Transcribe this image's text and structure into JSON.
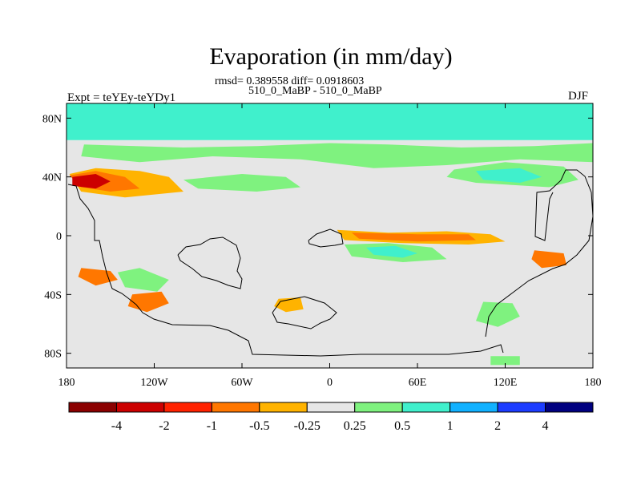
{
  "chart_data": {
    "type": "heatmap",
    "title": "Evaporation (in mm/day)",
    "stats_line": "rmsd= 0.389558 diff= 0.0918603",
    "subtitle": "510_0_MaBP - 510_0_MaBP",
    "left_label": "Expt = teYEy-teYDy1",
    "right_label": "DJF",
    "xlim": [
      -180,
      180
    ],
    "ylim": [
      -90,
      90
    ],
    "x_ticks": [
      {
        "value": -180,
        "label": "180"
      },
      {
        "value": -120,
        "label": "120W"
      },
      {
        "value": -60,
        "label": "60W"
      },
      {
        "value": 0,
        "label": "0"
      },
      {
        "value": 60,
        "label": "60E"
      },
      {
        "value": 120,
        "label": "120E"
      },
      {
        "value": 180,
        "label": "180"
      }
    ],
    "y_ticks": [
      {
        "value": 80,
        "label": "80N"
      },
      {
        "value": 40,
        "label": "40N"
      },
      {
        "value": 0,
        "label": "0"
      },
      {
        "value": -40,
        "label": "40S"
      },
      {
        "value": -80,
        "label": "80S"
      }
    ],
    "colorbar": {
      "levels": [
        "-4",
        "-2",
        "-1",
        "-0.5",
        "-0.25",
        "0.25",
        "0.5",
        "1",
        "2",
        "4"
      ],
      "colors": [
        "#8b0000",
        "#cc0000",
        "#ff2200",
        "#ff7700",
        "#ffb300",
        "#e6e6e6",
        "#7ff27f",
        "#40f0cc",
        "#11b1ff",
        "#1c3cff",
        "#000080"
      ]
    },
    "regions": [
      {
        "label": "polar-band-north",
        "color": "#40f0cc",
        "lon": [
          -180,
          180,
          180,
          -180
        ],
        "lat": [
          90,
          90,
          65,
          65
        ]
      },
      {
        "label": "positive-band-40N",
        "color": "#7ff27f",
        "lon": [
          -168,
          -100,
          -50,
          0,
          40,
          90,
          140,
          180,
          180,
          130,
          80,
          30,
          -20,
          -80,
          -130,
          -170
        ],
        "lat": [
          62,
          60,
          61,
          63,
          62,
          60,
          61,
          63,
          50,
          52,
          48,
          46,
          52,
          54,
          50,
          54
        ]
      },
      {
        "label": "positive-patch-pacific-n",
        "color": "#7ff27f",
        "lon": [
          -100,
          -60,
          -30,
          -20,
          -50,
          -90
        ],
        "lat": [
          38,
          42,
          40,
          33,
          30,
          32
        ]
      },
      {
        "label": "positive-patch-asia",
        "color": "#7ff27f",
        "lon": [
          85,
          120,
          160,
          170,
          150,
          100,
          80
        ],
        "lat": [
          45,
          50,
          47,
          38,
          33,
          36,
          40
        ]
      },
      {
        "label": "negative-patch-midlat-w",
        "color": "#ffb300",
        "lon": [
          -178,
          -160,
          -130,
          -110,
          -100,
          -140,
          -170
        ],
        "lat": [
          42,
          46,
          44,
          40,
          30,
          26,
          30
        ]
      },
      {
        "label": "negative-core-midlat-w",
        "color": "#ff7700",
        "lon": [
          -178,
          -160,
          -140,
          -130,
          -150,
          -170
        ],
        "lat": [
          41,
          44,
          40,
          32,
          30,
          33
        ]
      },
      {
        "label": "strong-negative-core",
        "color": "#cc0000",
        "lon": [
          -176,
          -160,
          -150,
          -160,
          -176
        ],
        "lat": [
          40,
          42,
          37,
          32,
          34
        ]
      },
      {
        "label": "positive-core-asia",
        "color": "#40f0cc",
        "lon": [
          100,
          130,
          145,
          130,
          105
        ],
        "lat": [
          44,
          46,
          40,
          36,
          38
        ]
      },
      {
        "label": "equatorial-negative",
        "color": "#ffb300",
        "lon": [
          5,
          40,
          80,
          110,
          120,
          95,
          50,
          10
        ],
        "lat": [
          4,
          2,
          3,
          1,
          -4,
          -6,
          -5,
          -3
        ]
      },
      {
        "label": "equatorial-negative-core",
        "color": "#ff7700",
        "lon": [
          15,
          60,
          95,
          100,
          60,
          20
        ],
        "lat": [
          2,
          1,
          1,
          -3,
          -4,
          -2
        ]
      },
      {
        "label": "equatorial-positive-s",
        "color": "#7ff27f",
        "lon": [
          10,
          40,
          70,
          80,
          50,
          15
        ],
        "lat": [
          -6,
          -5,
          -8,
          -16,
          -18,
          -14
        ]
      },
      {
        "label": "equatorial-positive-core",
        "color": "#40f0cc",
        "lon": [
          25,
          45,
          60,
          50,
          30
        ],
        "lat": [
          -8,
          -7,
          -12,
          -15,
          -13
        ]
      },
      {
        "label": "positive-patch-south-pacific",
        "color": "#7ff27f",
        "lon": [
          -145,
          -130,
          -110,
          -118,
          -140
        ],
        "lat": [
          -25,
          -22,
          -30,
          -38,
          -35
        ]
      },
      {
        "label": "negative-patch-sw",
        "color": "#ff7700",
        "lon": [
          -170,
          -150,
          -145,
          -160,
          -172
        ],
        "lat": [
          -22,
          -24,
          -30,
          -34,
          -28
        ]
      },
      {
        "label": "negative-patch-south",
        "color": "#ff7700",
        "lon": [
          -135,
          -115,
          -110,
          -125,
          -138
        ],
        "lat": [
          -40,
          -38,
          -46,
          -52,
          -48
        ]
      },
      {
        "label": "negative-patch-east",
        "color": "#ff7700",
        "lon": [
          140,
          160,
          162,
          145,
          138
        ],
        "lat": [
          -10,
          -12,
          -20,
          -22,
          -16
        ]
      },
      {
        "label": "positive-patch-east-s",
        "color": "#7ff27f",
        "lon": [
          105,
          125,
          130,
          115,
          100
        ],
        "lat": [
          -45,
          -46,
          -55,
          -62,
          -58
        ]
      },
      {
        "label": "antarctic-margin",
        "color": "#7ff27f",
        "lon": [
          110,
          130,
          130,
          110
        ],
        "lat": [
          -82,
          -82,
          -88,
          -88
        ]
      },
      {
        "label": "negative-patch-africa",
        "color": "#ffb300",
        "lon": [
          -35,
          -20,
          -18,
          -30,
          -38
        ],
        "lat": [
          -43,
          -42,
          -50,
          -52,
          -48
        ]
      }
    ]
  }
}
